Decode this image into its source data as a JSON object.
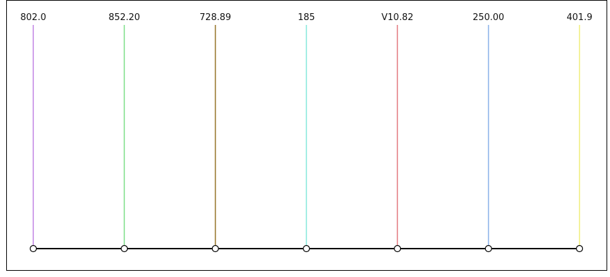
{
  "chart_data": {
    "type": "timeline",
    "points": [
      {
        "label": "802.0",
        "color": "#c58ae6"
      },
      {
        "label": "852.20",
        "color": "#84e08f"
      },
      {
        "label": "728.89",
        "color": "#9a7a32"
      },
      {
        "label": "185",
        "color": "#8eeade"
      },
      {
        "label": "V10.82",
        "color": "#e57f85"
      },
      {
        "label": "250.00",
        "color": "#8eb4ea"
      },
      {
        "label": "401.9",
        "color": "#f2ef82"
      }
    ],
    "axis_color": "#000000",
    "marker": "hollow-circle",
    "grid": false
  }
}
